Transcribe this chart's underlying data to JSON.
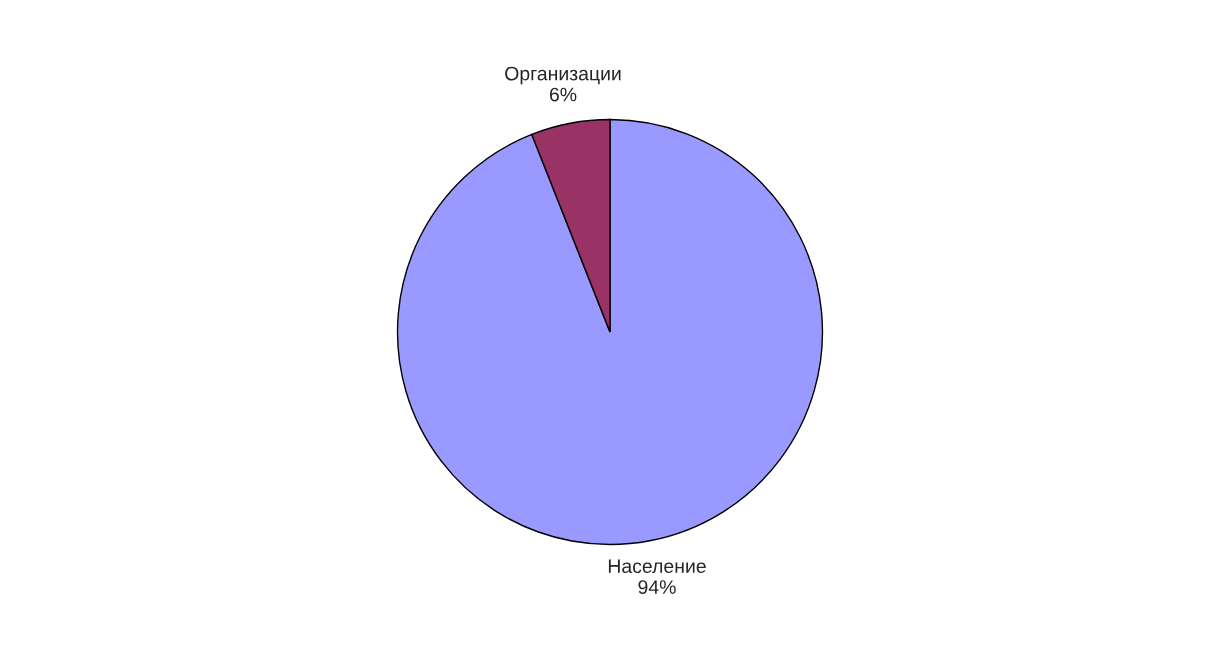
{
  "chart_data": {
    "type": "pie",
    "categories": [
      "Население",
      "Организации"
    ],
    "values": [
      94,
      6
    ],
    "value_labels": [
      "94%",
      "6%"
    ],
    "colors": [
      "#9999ff",
      "#993366"
    ],
    "legend": false
  }
}
